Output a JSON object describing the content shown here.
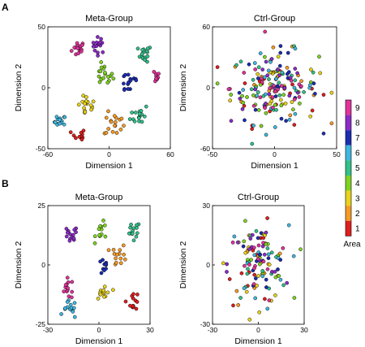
{
  "chart_data": [
    {
      "panel": "A",
      "type": "scatter",
      "title": "Meta-Group",
      "xlabel": "Dimension 1",
      "ylabel": "Dimension 2",
      "xlim": [
        -60,
        60
      ],
      "ylim": [
        -50,
        50
      ],
      "xticks": [
        "-60",
        "0",
        "60"
      ],
      "yticks": [
        "50",
        "0",
        "-50"
      ],
      "clusters": [
        {
          "area": 9,
          "cx": -30,
          "cy": 32,
          "spread": 6,
          "n": 16
        },
        {
          "area": 8,
          "cx": -10,
          "cy": 35,
          "spread": 6,
          "n": 16
        },
        {
          "area": 6,
          "cx": -48,
          "cy": -28,
          "spread": 5,
          "n": 14
        },
        {
          "area": 5,
          "cx": 35,
          "cy": 28,
          "spread": 6,
          "n": 16
        },
        {
          "area": 4,
          "cx": -5,
          "cy": 10,
          "spread": 8,
          "n": 18
        },
        {
          "area": 3,
          "cx": -22,
          "cy": -15,
          "spread": 8,
          "n": 18
        },
        {
          "area": 2,
          "cx": 5,
          "cy": -30,
          "spread": 9,
          "n": 18
        },
        {
          "area": 1,
          "cx": -30,
          "cy": -40,
          "spread": 6,
          "n": 12
        },
        {
          "area": 9,
          "cx": 45,
          "cy": 10,
          "spread": 5,
          "n": 10
        },
        {
          "area": 7,
          "cx": 20,
          "cy": 5,
          "spread": 10,
          "n": 16
        },
        {
          "area": 5,
          "cx": 30,
          "cy": -22,
          "spread": 8,
          "n": 16
        }
      ]
    },
    {
      "panel": "A",
      "type": "scatter",
      "title": "Ctrl-Group",
      "xlabel": "Dimension 1",
      "ylabel": "Dimension 2",
      "xlim": [
        -50,
        50
      ],
      "ylim": [
        -60,
        60
      ],
      "xticks": [
        "-50",
        "0",
        "50"
      ],
      "yticks": [
        "60",
        "0",
        "-60"
      ],
      "clusters": [
        {
          "area": 1,
          "cx": 0,
          "cy": 0,
          "spread": 32,
          "n": 22
        },
        {
          "area": 2,
          "cx": 0,
          "cy": 0,
          "spread": 32,
          "n": 22
        },
        {
          "area": 3,
          "cx": 0,
          "cy": 0,
          "spread": 32,
          "n": 22
        },
        {
          "area": 4,
          "cx": 0,
          "cy": 0,
          "spread": 32,
          "n": 22
        },
        {
          "area": 5,
          "cx": 0,
          "cy": 0,
          "spread": 32,
          "n": 22
        },
        {
          "area": 6,
          "cx": 0,
          "cy": 0,
          "spread": 32,
          "n": 22
        },
        {
          "area": 7,
          "cx": 0,
          "cy": 0,
          "spread": 32,
          "n": 22
        },
        {
          "area": 8,
          "cx": 0,
          "cy": 0,
          "spread": 32,
          "n": 22
        },
        {
          "area": 9,
          "cx": 0,
          "cy": 0,
          "spread": 32,
          "n": 22
        }
      ]
    },
    {
      "panel": "B",
      "type": "scatter",
      "title": "Meta-Group",
      "xlabel": "Dimension 1",
      "ylabel": "Dimension 2",
      "xlim": [
        -30,
        30
      ],
      "ylim": [
        -25,
        25
      ],
      "xticks": [
        "-30",
        "0",
        "30"
      ],
      "yticks": [
        "25",
        "0",
        "-25"
      ],
      "clusters": [
        {
          "area": 9,
          "cx": -18,
          "cy": -10,
          "spread": 4,
          "n": 14
        },
        {
          "area": 8,
          "cx": -17,
          "cy": 12,
          "spread": 4,
          "n": 14
        },
        {
          "area": 7,
          "cx": 3,
          "cy": -1,
          "spread": 3,
          "n": 10
        },
        {
          "area": 6,
          "cx": -17,
          "cy": -19,
          "spread": 3.5,
          "n": 14
        },
        {
          "area": 5,
          "cx": 20,
          "cy": 14,
          "spread": 4,
          "n": 14
        },
        {
          "area": 4,
          "cx": 2,
          "cy": 14,
          "spread": 3.5,
          "n": 12
        },
        {
          "area": 3,
          "cx": 3,
          "cy": -12,
          "spread": 4,
          "n": 14
        },
        {
          "area": 2,
          "cx": 12,
          "cy": 4,
          "spread": 4,
          "n": 14
        },
        {
          "area": 1,
          "cx": 20,
          "cy": -15,
          "spread": 3.5,
          "n": 14
        }
      ]
    },
    {
      "panel": "B",
      "type": "scatter",
      "title": "Ctrl-Group",
      "xlabel": "Dimension 1",
      "ylabel": "Dimension 2",
      "xlim": [
        -30,
        30
      ],
      "ylim": [
        -30,
        30
      ],
      "xticks": [
        "-30",
        "0",
        "30"
      ],
      "yticks": [
        "30",
        "0",
        "-30"
      ],
      "clusters": [
        {
          "area": 1,
          "cx": 0,
          "cy": 0,
          "spread": 18,
          "n": 14
        },
        {
          "area": 2,
          "cx": 0,
          "cy": 0,
          "spread": 18,
          "n": 14
        },
        {
          "area": 3,
          "cx": 0,
          "cy": 0,
          "spread": 18,
          "n": 14
        },
        {
          "area": 4,
          "cx": 0,
          "cy": 0,
          "spread": 18,
          "n": 14
        },
        {
          "area": 5,
          "cx": 0,
          "cy": 0,
          "spread": 18,
          "n": 14
        },
        {
          "area": 6,
          "cx": 0,
          "cy": 0,
          "spread": 18,
          "n": 14
        },
        {
          "area": 7,
          "cx": 0,
          "cy": 0,
          "spread": 18,
          "n": 14
        },
        {
          "area": 8,
          "cx": 0,
          "cy": 0,
          "spread": 18,
          "n": 14
        },
        {
          "area": 9,
          "cx": 0,
          "cy": 0,
          "spread": 18,
          "n": 14
        }
      ]
    }
  ],
  "panel_labels": [
    "A",
    "B"
  ],
  "colorbar": {
    "title": "Area",
    "ticks": [
      "9",
      "8",
      "7",
      "6",
      "5",
      "4",
      "3",
      "2",
      "1"
    ],
    "colors": {
      "1": "#e01e1e",
      "2": "#f59a23",
      "3": "#e8d21a",
      "4": "#7ed321",
      "5": "#32c08a",
      "6": "#3fb7e0",
      "7": "#1b2db3",
      "8": "#8c2bc9",
      "9": "#e0329a"
    }
  }
}
